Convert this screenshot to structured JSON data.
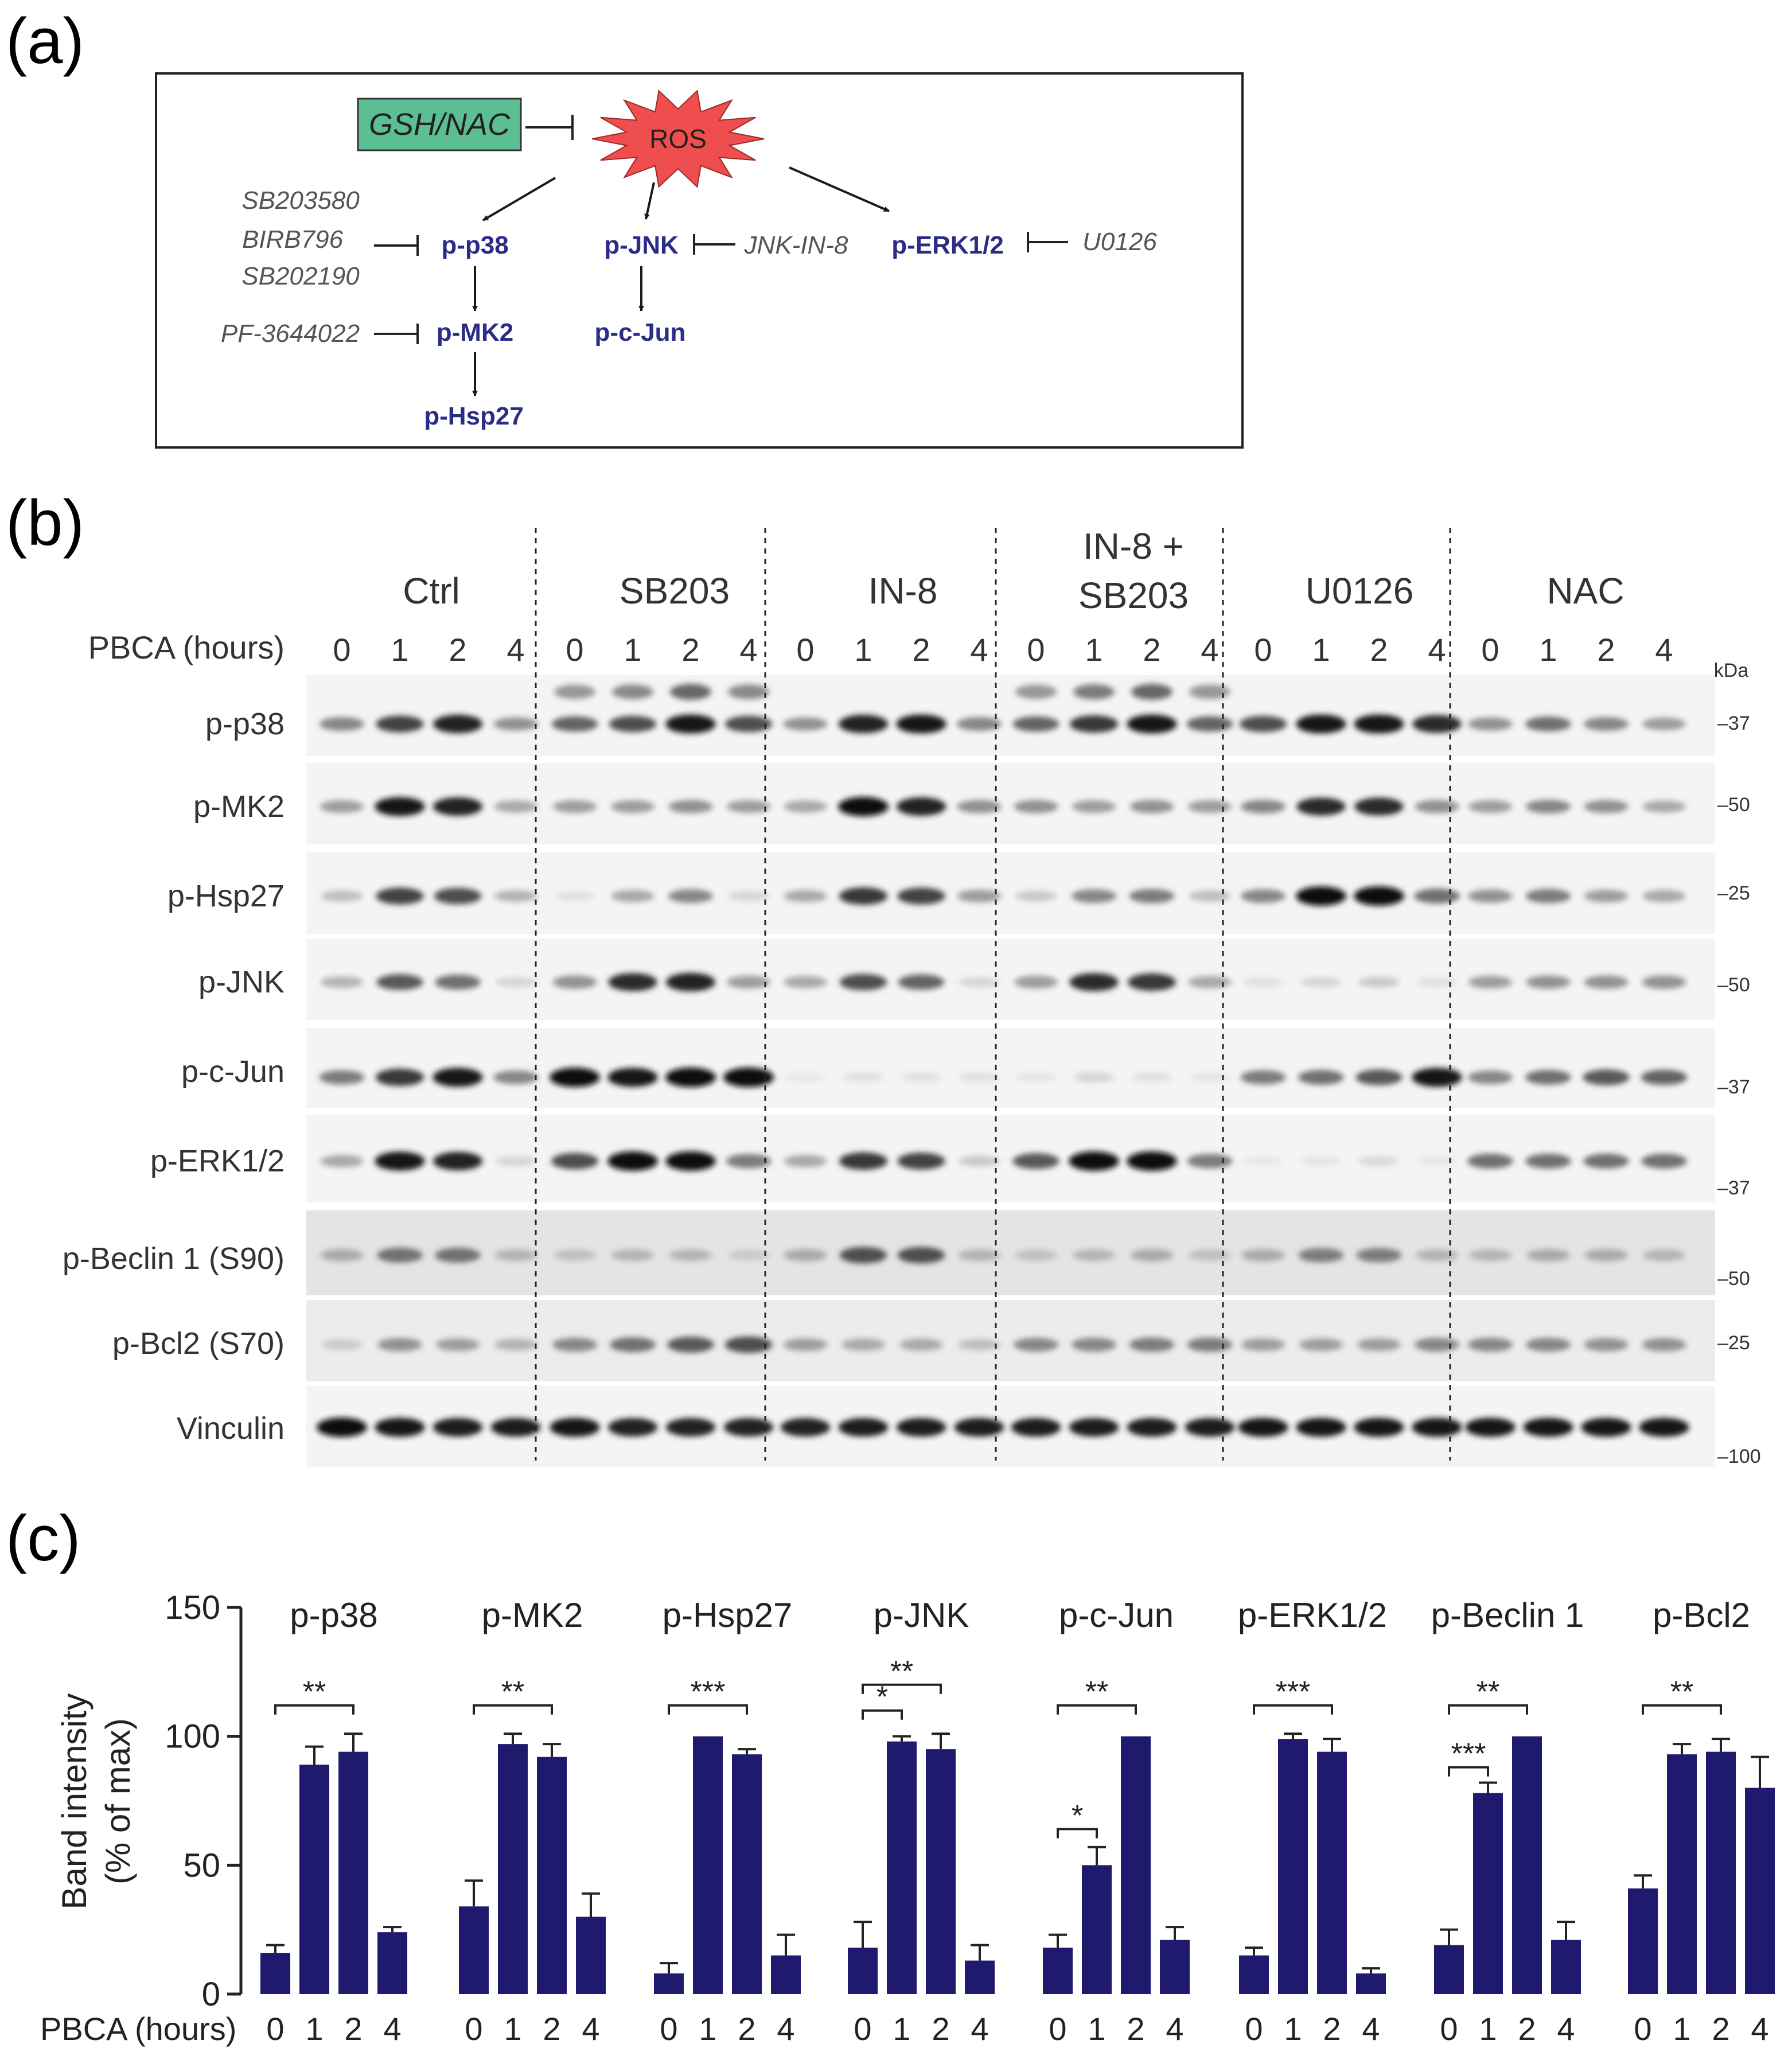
{
  "panel_labels": {
    "a": "(a)",
    "b": "(b)",
    "c": "(c)"
  },
  "pathway": {
    "gsh": "GSH/NAC",
    "ros": "ROS",
    "p38": "p-p38",
    "jnk": "p-JNK",
    "erk": "p-ERK1/2",
    "mk2": "p-MK2",
    "cjun": "p-c-Jun",
    "hsp27": "p-Hsp27",
    "inh_p38": [
      "SB203580",
      "BIRB796",
      "SB202190"
    ],
    "inh_mk2": "PF-3644022",
    "inh_jnk": "JNK-IN-8",
    "inh_erk": "U0126"
  },
  "blot": {
    "x_title": "PBCA (hours)",
    "kda_title": "kDa",
    "conditions": [
      "Ctrl",
      "SB203",
      "IN-8",
      "IN-8 +",
      "SB203",
      "U0126",
      "NAC"
    ],
    "timepoints": [
      "0",
      "1",
      "2",
      "4"
    ],
    "rows": [
      {
        "label": "p-p38",
        "kda": "–37"
      },
      {
        "label": "p-MK2",
        "kda": "–50"
      },
      {
        "label": "p-Hsp27",
        "kda": "–25"
      },
      {
        "label": "p-JNK",
        "kda": "–50"
      },
      {
        "label": "p-c-Jun",
        "kda": "–37"
      },
      {
        "label": "p-ERK1/2",
        "kda": "–37"
      },
      {
        "label": "p-Beclin 1 (S90)",
        "kda": "–50"
      },
      {
        "label": "p-Bcl2 (S70)",
        "kda": "–25"
      },
      {
        "label": "Vinculin",
        "kda": "–100"
      }
    ],
    "intensities": [
      [
        [
          0.45,
          0.75,
          0.9,
          0.4
        ],
        [
          0.6,
          0.7,
          0.95,
          0.7
        ],
        [
          0.4,
          0.9,
          0.95,
          0.45
        ],
        [
          0.6,
          0.8,
          0.95,
          0.6
        ],
        [
          0.7,
          0.95,
          0.95,
          0.85
        ],
        [
          0.4,
          0.55,
          0.45,
          0.35
        ]
      ],
      [
        [
          0.35,
          0.95,
          0.9,
          0.3
        ],
        [
          0.35,
          0.35,
          0.4,
          0.35
        ],
        [
          0.3,
          0.98,
          0.9,
          0.4
        ],
        [
          0.4,
          0.35,
          0.4,
          0.35
        ],
        [
          0.45,
          0.85,
          0.85,
          0.4
        ],
        [
          0.35,
          0.45,
          0.4,
          0.3
        ]
      ],
      [
        [
          0.2,
          0.75,
          0.7,
          0.25
        ],
        [
          0.05,
          0.3,
          0.45,
          0.1
        ],
        [
          0.3,
          0.8,
          0.75,
          0.35
        ],
        [
          0.15,
          0.45,
          0.5,
          0.2
        ],
        [
          0.45,
          0.98,
          0.98,
          0.55
        ],
        [
          0.4,
          0.5,
          0.35,
          0.3
        ]
      ],
      [
        [
          0.25,
          0.65,
          0.55,
          0.1
        ],
        [
          0.4,
          0.85,
          0.9,
          0.35
        ],
        [
          0.3,
          0.7,
          0.6,
          0.1
        ],
        [
          0.35,
          0.85,
          0.8,
          0.3
        ],
        [
          0.05,
          0.1,
          0.15,
          0.05
        ],
        [
          0.35,
          0.4,
          0.4,
          0.4
        ]
      ],
      [
        [
          0.5,
          0.8,
          0.95,
          0.45
        ],
        [
          0.98,
          0.95,
          1.0,
          1.0
        ],
        [
          0.02,
          0.05,
          0.05,
          0.05
        ],
        [
          0.03,
          0.1,
          0.05,
          0.03
        ],
        [
          0.5,
          0.55,
          0.65,
          0.95
        ],
        [
          0.45,
          0.55,
          0.65,
          0.6
        ]
      ],
      [
        [
          0.3,
          0.95,
          0.9,
          0.1
        ],
        [
          0.7,
          0.98,
          0.98,
          0.5
        ],
        [
          0.3,
          0.8,
          0.75,
          0.15
        ],
        [
          0.65,
          0.98,
          0.98,
          0.5
        ],
        [
          0.02,
          0.03,
          0.08,
          0.02
        ],
        [
          0.55,
          0.55,
          0.55,
          0.55
        ]
      ],
      [
        [
          0.3,
          0.55,
          0.55,
          0.25
        ],
        [
          0.2,
          0.25,
          0.25,
          0.15
        ],
        [
          0.3,
          0.7,
          0.7,
          0.25
        ],
        [
          0.2,
          0.25,
          0.3,
          0.2
        ],
        [
          0.3,
          0.5,
          0.5,
          0.25
        ],
        [
          0.25,
          0.3,
          0.3,
          0.25
        ]
      ],
      [
        [
          0.15,
          0.4,
          0.35,
          0.25
        ],
        [
          0.45,
          0.55,
          0.65,
          0.7
        ],
        [
          0.35,
          0.3,
          0.3,
          0.2
        ],
        [
          0.45,
          0.45,
          0.5,
          0.5
        ],
        [
          0.35,
          0.35,
          0.35,
          0.45
        ],
        [
          0.45,
          0.45,
          0.4,
          0.4
        ]
      ],
      [
        [
          0.98,
          0.95,
          0.92,
          0.92
        ],
        [
          0.95,
          0.9,
          0.9,
          0.9
        ],
        [
          0.9,
          0.92,
          0.92,
          0.92
        ],
        [
          0.92,
          0.92,
          0.92,
          0.92
        ],
        [
          0.95,
          0.95,
          0.95,
          0.95
        ],
        [
          0.95,
          0.95,
          0.95,
          0.95
        ]
      ]
    ]
  },
  "chart_data": {
    "type": "bar",
    "ylabel_line1": "Band intensity",
    "ylabel_line2": "(% of max)",
    "xlabel": "PBCA (hours)",
    "yticks": [
      "0",
      "50",
      "100",
      "150"
    ],
    "ylim": [
      0,
      150
    ],
    "categories": [
      "0",
      "1",
      "2",
      "4"
    ],
    "bar_color": "#1f1a6e",
    "groups": [
      {
        "name": "p-p38",
        "values": [
          16,
          89,
          94,
          24
        ],
        "errors": [
          3,
          7,
          7,
          2
        ],
        "sig": [
          {
            "from": 0,
            "to": 2,
            "label": "**",
            "level": 1
          }
        ]
      },
      {
        "name": "p-MK2",
        "values": [
          34,
          97,
          92,
          30
        ],
        "errors": [
          10,
          4,
          5,
          9
        ],
        "sig": [
          {
            "from": 0,
            "to": 2,
            "label": "**",
            "level": 1
          }
        ]
      },
      {
        "name": "p-Hsp27",
        "values": [
          8,
          100,
          93,
          15
        ],
        "errors": [
          4,
          0,
          2,
          8
        ],
        "sig": [
          {
            "from": 0,
            "to": 2,
            "label": "***",
            "level": 1
          }
        ]
      },
      {
        "name": "p-JNK",
        "values": [
          18,
          98,
          95,
          13
        ],
        "errors": [
          10,
          2,
          6,
          6
        ],
        "sig": [
          {
            "from": 0,
            "to": 1,
            "label": "*",
            "level": 0
          },
          {
            "from": 0,
            "to": 2,
            "label": "**",
            "level": 2
          }
        ]
      },
      {
        "name": "p-c-Jun",
        "values": [
          18,
          50,
          100,
          21
        ],
        "errors": [
          5,
          7,
          0,
          5
        ],
        "sig": [
          {
            "from": 0,
            "to": 1,
            "label": "*",
            "level": -2
          },
          {
            "from": 0,
            "to": 2,
            "label": "**",
            "level": 1
          }
        ]
      },
      {
        "name": "p-ERK1/2",
        "values": [
          15,
          99,
          94,
          8
        ],
        "errors": [
          3,
          2,
          5,
          2
        ],
        "sig": [
          {
            "from": 0,
            "to": 2,
            "label": "***",
            "level": 1
          }
        ]
      },
      {
        "name": "p-Beclin 1",
        "values": [
          19,
          78,
          100,
          21
        ],
        "errors": [
          6,
          4,
          0,
          7
        ],
        "sig": [
          {
            "from": 0,
            "to": 1,
            "label": "***",
            "level": -1
          },
          {
            "from": 0,
            "to": 2,
            "label": "**",
            "level": 1
          }
        ]
      },
      {
        "name": "p-Bcl2",
        "values": [
          41,
          93,
          94,
          80
        ],
        "errors": [
          5,
          4,
          5,
          12
        ],
        "sig": [
          {
            "from": 0,
            "to": 2,
            "label": "**",
            "level": 1
          }
        ]
      }
    ]
  }
}
